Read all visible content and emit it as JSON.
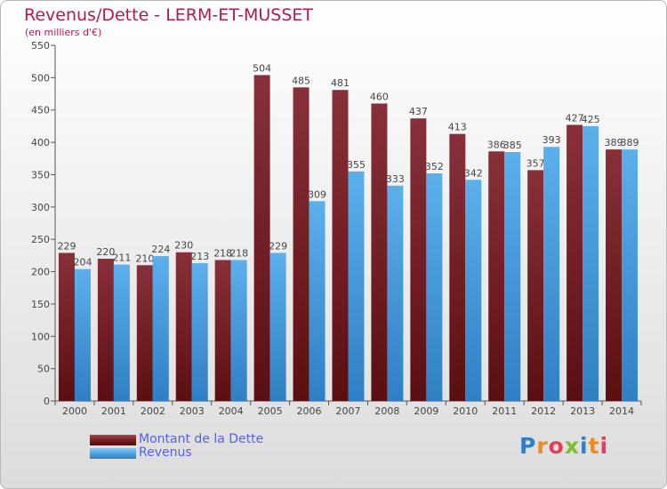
{
  "title": "Revenus/Dette - LERM-ET-MUSSET",
  "subtitle": "(en milliers d'€)",
  "logo_text": "Proxiti",
  "colors": {
    "title": "#b4185a",
    "series_dette": "#7a1f24",
    "series_revenus": "#4fa3e0",
    "legend_text": "#5560f0"
  },
  "chart_data": {
    "type": "bar",
    "title": "Revenus/Dette - LERM-ET-MUSSET",
    "subtitle": "(en milliers d'€)",
    "categories": [
      "2000",
      "2001",
      "2002",
      "2003",
      "2004",
      "2005",
      "2006",
      "2007",
      "2008",
      "2009",
      "2010",
      "2011",
      "2012",
      "2013",
      "2014"
    ],
    "series": [
      {
        "name": "Montant de la Dette",
        "values": [
          229,
          220,
          210,
          230,
          218,
          504,
          485,
          481,
          460,
          437,
          413,
          386,
          357,
          427,
          389
        ]
      },
      {
        "name": "Revenus",
        "values": [
          204,
          211,
          224,
          213,
          218,
          229,
          309,
          355,
          333,
          352,
          342,
          385,
          393,
          425,
          389
        ]
      }
    ],
    "y_ticks": [
      0,
      50,
      100,
      150,
      200,
      250,
      300,
      350,
      400,
      450,
      500,
      550
    ],
    "ylim": [
      0,
      550
    ],
    "grid": false,
    "legend_position": "bottom-left"
  }
}
